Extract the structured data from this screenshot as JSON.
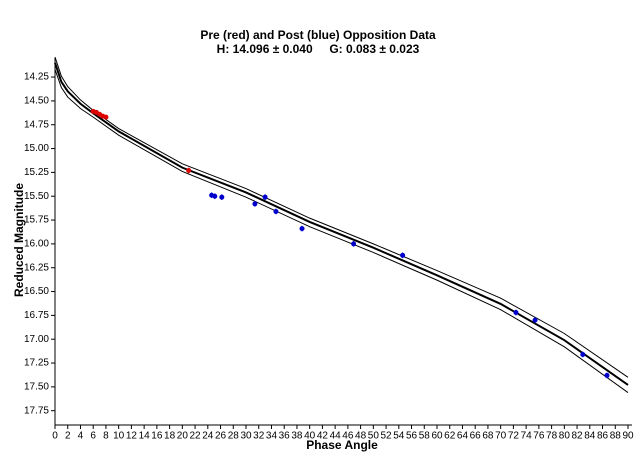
{
  "chart_data": {
    "type": "scatter",
    "title": "Pre (red) and Post (blue) Opposition Data",
    "subtitle": "H: 14.096 ± 0.040     G: 0.083 ± 0.023",
    "x_label": "Phase Angle",
    "y_label": "Reduced Magnitude",
    "xlim": [
      0,
      90
    ],
    "ylim": [
      17.9,
      14.05
    ],
    "xticks": [
      0,
      2,
      4,
      6,
      8,
      10,
      12,
      14,
      16,
      18,
      20,
      22,
      24,
      26,
      28,
      30,
      32,
      34,
      36,
      38,
      40,
      42,
      44,
      46,
      48,
      50,
      52,
      54,
      56,
      58,
      60,
      62,
      64,
      66,
      68,
      70,
      72,
      74,
      76,
      78,
      80,
      82,
      84,
      86,
      88,
      90
    ],
    "yticks": [
      14.25,
      {
        "value": 14.5,
        "label": "14.50"
      },
      14.75,
      {
        "value": 15,
        "label": "15.00"
      },
      15.25,
      {
        "value": 15.5,
        "label": "15.50"
      },
      15.75,
      {
        "value": 16,
        "label": "16.00"
      },
      16.25,
      {
        "value": 16.5,
        "label": "16.50"
      },
      16.75,
      {
        "value": 17,
        "label": "17.00"
      },
      17.25,
      {
        "value": 17.5,
        "label": "17.50"
      },
      17.75
    ],
    "series": [
      {
        "type": "line",
        "color": "#000000",
        "line_width": 2,
        "x": [
          0,
          1,
          2,
          4,
          6,
          10,
          20,
          30,
          40,
          50,
          60,
          70,
          80,
          90
        ],
        "values": [
          14.1,
          14.3,
          14.4,
          14.53,
          14.63,
          14.82,
          15.2,
          15.46,
          15.77,
          16.04,
          16.33,
          16.63,
          17.01,
          17.48
        ]
      },
      {
        "type": "line",
        "color": "#000000",
        "line_width": 1,
        "x": [
          0,
          1,
          2,
          4,
          6,
          10,
          20,
          30,
          40,
          50,
          60,
          70,
          80,
          90
        ],
        "values": [
          14.04,
          14.24,
          14.35,
          14.49,
          14.6,
          14.79,
          15.16,
          15.42,
          15.73,
          16.0,
          16.28,
          16.57,
          16.94,
          17.4
        ]
      },
      {
        "type": "line",
        "color": "#000000",
        "line_width": 1,
        "x": [
          0,
          1,
          2,
          4,
          6,
          10,
          20,
          30,
          40,
          50,
          60,
          70,
          80,
          90
        ],
        "values": [
          14.17,
          14.36,
          14.46,
          14.58,
          14.67,
          14.86,
          15.24,
          15.51,
          15.82,
          16.09,
          16.38,
          16.69,
          17.08,
          17.56
        ]
      },
      {
        "type": "scatter",
        "color": "#dd0000",
        "x": [
          6.0,
          6.5,
          7.0,
          7.5,
          8.0,
          21.0
        ],
        "values": [
          14.61,
          14.62,
          14.64,
          14.66,
          14.67,
          15.23
        ],
        "errors": [
          0.02,
          0.02,
          0.02,
          0.02,
          0.02,
          0.03
        ]
      },
      {
        "type": "scatter",
        "color": "#0000cc",
        "x": [
          24.6,
          25.1,
          26.2,
          31.4,
          33.0,
          34.7,
          38.8,
          46.9,
          54.6,
          72.4,
          75.4,
          82.9,
          86.7
        ],
        "values": [
          15.49,
          15.5,
          15.51,
          15.58,
          15.51,
          15.66,
          15.84,
          16.0,
          16.12,
          16.72,
          16.8,
          17.16,
          17.38
        ],
        "errors": [
          0.03,
          0.03,
          0.03,
          0.03,
          0.03,
          0.03,
          0.03,
          0.03,
          0.03,
          0.03,
          0.03,
          0.03,
          0.03
        ]
      }
    ]
  }
}
